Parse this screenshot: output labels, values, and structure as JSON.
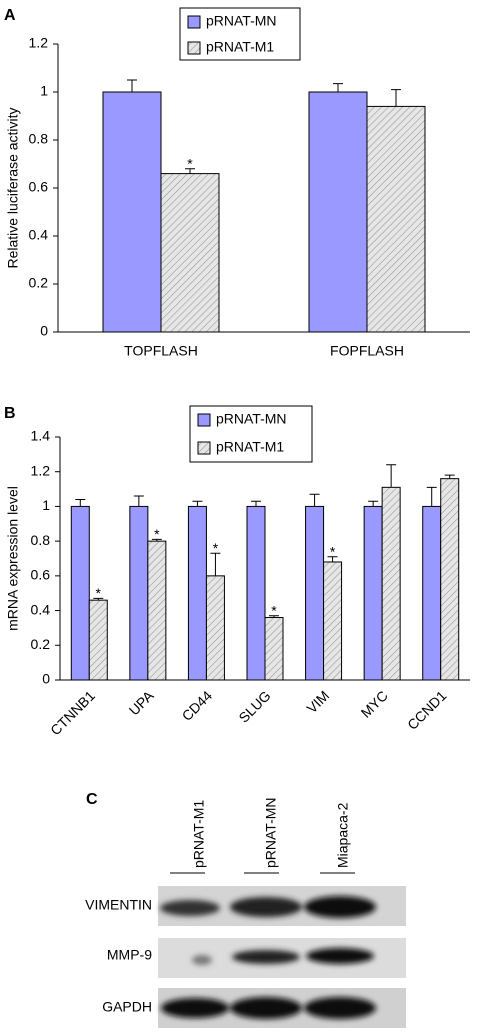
{
  "chart_data": [
    {
      "type": "bar",
      "panel": "A",
      "y_label": "Relative  luciferase activity",
      "categories": [
        "TOPFLASH",
        "FOPFLASH"
      ],
      "series": [
        {
          "name": "pRNAT-MN",
          "color": "#9999ff",
          "values": [
            1,
            1
          ],
          "errors": [
            0.05,
            0.035
          ],
          "markers": [
            null,
            null
          ]
        },
        {
          "name": "pRNAT-M1",
          "color": "#d9d9d9",
          "pattern": "hatch",
          "values": [
            0.66,
            0.94
          ],
          "errors": [
            0.02,
            0.07
          ],
          "markers": [
            "*",
            null
          ]
        }
      ],
      "ylim": [
        0,
        1.2
      ],
      "yticks": [
        0,
        0.2,
        0.4,
        0.6,
        0.8,
        1,
        1.2
      ],
      "legend": "top"
    },
    {
      "type": "bar",
      "panel": "B",
      "y_label": "mRNA expression level",
      "categories": [
        "CTNNB1",
        "UPA",
        "CD44",
        "SLUG",
        "VIM",
        "MYC",
        "CCND1"
      ],
      "series": [
        {
          "name": "pRNAT-MN",
          "color": "#9999ff",
          "values": [
            1,
            1,
            1,
            1,
            1,
            1,
            1
          ],
          "errors": [
            0.04,
            0.06,
            0.03,
            0.03,
            0.07,
            0.03,
            0.11
          ],
          "markers": [
            null,
            null,
            null,
            null,
            null,
            null,
            null
          ]
        },
        {
          "name": "pRNAT-M1",
          "color": "#d9d9d9",
          "pattern": "hatch",
          "values": [
            0.46,
            0.8,
            0.6,
            0.36,
            0.68,
            1.11,
            1.16
          ],
          "errors": [
            0.01,
            0.01,
            0.13,
            0.01,
            0.03,
            0.13,
            0.02
          ],
          "markers": [
            "*",
            "*",
            "*",
            "*",
            "*",
            null,
            null
          ]
        }
      ],
      "ylim": [
        0,
        1.4
      ],
      "yticks": [
        0,
        0.2,
        0.4,
        0.6,
        0.8,
        1,
        1.2,
        1.4
      ],
      "legend": "top"
    }
  ],
  "blot": {
    "panel": "C",
    "lanes": [
      "pRNAT-M1",
      "pRNAT-MN",
      "Miapaca-2"
    ],
    "rows": [
      "VIMENTIN",
      "MMP-9",
      "GAPDH"
    ]
  }
}
